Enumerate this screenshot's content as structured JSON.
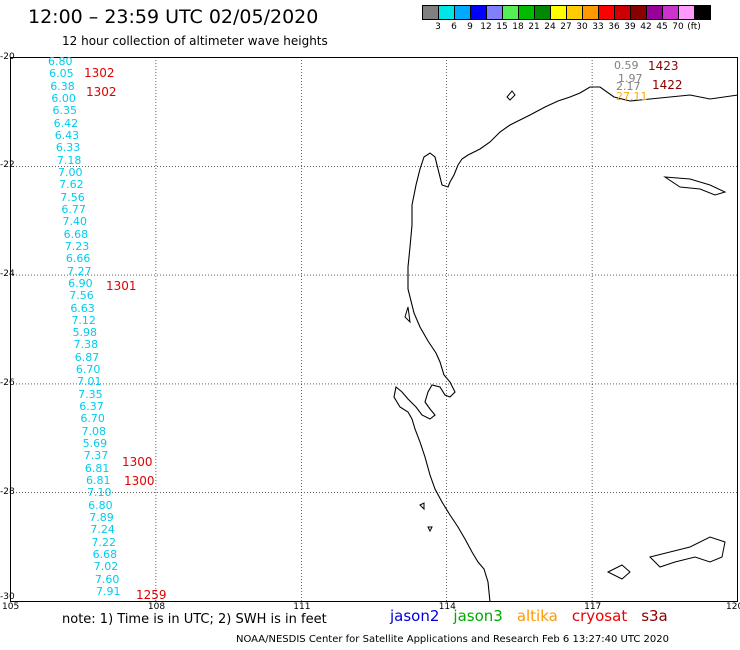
{
  "header": {
    "title": "12:00 – 23:59 UTC 02/05/2020",
    "subtitle": "12 hour collection of altimeter wave heights"
  },
  "colorbar": {
    "colors": [
      "#808080",
      "#00e5e5",
      "#00aaff",
      "#0000ff",
      "#8080ff",
      "#55ee55",
      "#00bb00",
      "#008800",
      "#ffff00",
      "#ffcc00",
      "#ff9900",
      "#ff0000",
      "#cc0000",
      "#880000",
      "#990099",
      "#cc33cc",
      "#ff99ff",
      "#000000"
    ],
    "labels": [
      "3",
      "6",
      "9",
      "12",
      "15",
      "18",
      "21",
      "24",
      "27",
      "30",
      "33",
      "36",
      "39",
      "42",
      "45",
      "70",
      "(ft)"
    ]
  },
  "map": {
    "lat_labels": [
      "-20",
      "-22",
      "-24",
      "-26",
      "-28",
      "-30"
    ],
    "lon_labels": [
      "105",
      "108",
      "111",
      "114",
      "117",
      "120"
    ],
    "wave_heights": [
      {
        "v": "6.80",
        "c": "#00ccee"
      },
      {
        "v": "6.05",
        "c": "#00ccee"
      },
      {
        "v": "6.38",
        "c": "#00ccee"
      },
      {
        "v": "6.00",
        "c": "#00ccee"
      },
      {
        "v": "6.35",
        "c": "#00ccee"
      },
      {
        "v": "6.42",
        "c": "#00ccee"
      },
      {
        "v": "6.43",
        "c": "#00ccee"
      },
      {
        "v": "6.33",
        "c": "#00ccee"
      },
      {
        "v": "7.18",
        "c": "#00ccee"
      },
      {
        "v": "7.00",
        "c": "#00ccee"
      },
      {
        "v": "7.62",
        "c": "#00ccee"
      },
      {
        "v": "7.56",
        "c": "#00ccee"
      },
      {
        "v": "6.77",
        "c": "#00ccee"
      },
      {
        "v": "7.40",
        "c": "#00ccee"
      },
      {
        "v": "6.68",
        "c": "#00ccee"
      },
      {
        "v": "7.23",
        "c": "#00ccee"
      },
      {
        "v": "6.66",
        "c": "#00ccee"
      },
      {
        "v": "7.27",
        "c": "#00ccee"
      },
      {
        "v": "6.90",
        "c": "#00ccee"
      },
      {
        "v": "7.56",
        "c": "#00ccee"
      },
      {
        "v": "6.63",
        "c": "#00ccee"
      },
      {
        "v": "7.12",
        "c": "#00ccee"
      },
      {
        "v": "5.98",
        "c": "#00ccee"
      },
      {
        "v": "7.38",
        "c": "#00ccee"
      },
      {
        "v": "6.87",
        "c": "#00ccee"
      },
      {
        "v": "6.70",
        "c": "#00ccee"
      },
      {
        "v": "7.01",
        "c": "#00ccee"
      },
      {
        "v": "7.35",
        "c": "#00ccee"
      },
      {
        "v": "6.37",
        "c": "#00ccee"
      },
      {
        "v": "6.70",
        "c": "#00ccee"
      },
      {
        "v": "7.08",
        "c": "#00ccee"
      },
      {
        "v": "5.69",
        "c": "#00ccee"
      },
      {
        "v": "7.37",
        "c": "#00ccee"
      },
      {
        "v": "6.81",
        "c": "#00ccee"
      },
      {
        "v": "6.81",
        "c": "#00ccee"
      },
      {
        "v": "7.10",
        "c": "#00ccee"
      },
      {
        "v": "6.80",
        "c": "#00ccee"
      },
      {
        "v": "7.89",
        "c": "#00ccee"
      },
      {
        "v": "7.24",
        "c": "#00ccee"
      },
      {
        "v": "7.22",
        "c": "#00ccee"
      },
      {
        "v": "6.68",
        "c": "#00ccee"
      },
      {
        "v": "7.02",
        "c": "#00ccee"
      },
      {
        "v": "7.60",
        "c": "#00ccee"
      },
      {
        "v": "7.91",
        "c": "#00ccee"
      }
    ],
    "time_labels": [
      "1302",
      "1302",
      "1301",
      "1300",
      "1300",
      "1259"
    ],
    "ne_values": [
      {
        "v": "0.59",
        "c": "#808080"
      },
      {
        "v": "1.97",
        "c": "#808080"
      },
      {
        "v": "2.17",
        "c": "#808080"
      },
      {
        "v": "27.11",
        "c": "#ffaa00"
      }
    ],
    "ne_times": [
      "1423",
      "1422"
    ]
  },
  "legend": {
    "satellites": [
      {
        "name": "jason2",
        "color": "#0000dd"
      },
      {
        "name": "jason3",
        "color": "#00aa00"
      },
      {
        "name": "altika",
        "color": "#ff9900"
      },
      {
        "name": "cryosat",
        "color": "#ee0000"
      },
      {
        "name": "s3a",
        "color": "#880000"
      }
    ]
  },
  "note": "note:  1) Time is in UTC;  2) SWH is in feet",
  "footer": "NOAA/NESDIS Center for Satellite Applications and Research    Feb  6 13:27:40 UTC 2020"
}
